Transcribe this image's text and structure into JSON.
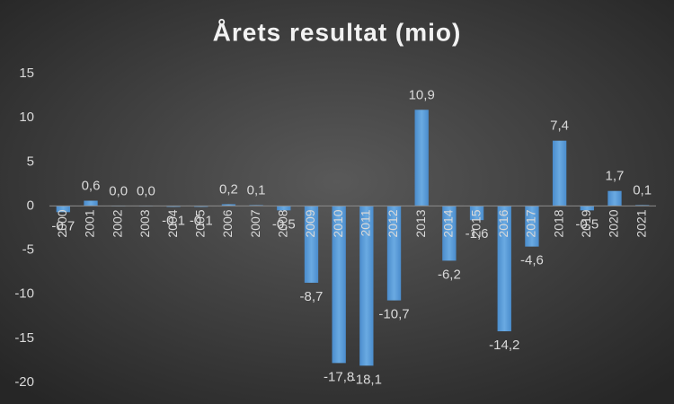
{
  "chart_data": {
    "type": "bar",
    "title": "Årets resultat (mio)",
    "categories": [
      "2000",
      "2001",
      "2002",
      "2003",
      "2004",
      "2005",
      "2006",
      "2007",
      "2008",
      "2009",
      "2010",
      "2011",
      "2012",
      "2013",
      "2014",
      "2015",
      "2016",
      "2017",
      "2018",
      "2019",
      "2020",
      "2021"
    ],
    "values": [
      -0.7,
      0.6,
      0.0,
      0.0,
      -0.1,
      -0.1,
      0.2,
      0.1,
      -0.5,
      -8.7,
      -17.8,
      -18.1,
      -10.7,
      10.9,
      -6.2,
      -1.6,
      -14.2,
      -4.6,
      7.4,
      -0.5,
      1.7,
      0.1
    ],
    "value_labels": [
      "-0,7",
      "0,6",
      "0,0",
      "0,0",
      "-0,1",
      "-0,1",
      "0,2",
      "0,1",
      "-0,5",
      "-8,7",
      "-17,8",
      "-18,1",
      "-10,7",
      "10,9",
      "-6,2",
      "-1,6",
      "-14,2",
      "-4,6",
      "7,4",
      "-0,5",
      "1,7",
      "0,1"
    ],
    "color": "#5b9bd5",
    "ylim": [
      -20,
      15
    ],
    "yticks": [
      -20,
      -15,
      -10,
      -5,
      0,
      5,
      10,
      15
    ],
    "grid": false
  }
}
